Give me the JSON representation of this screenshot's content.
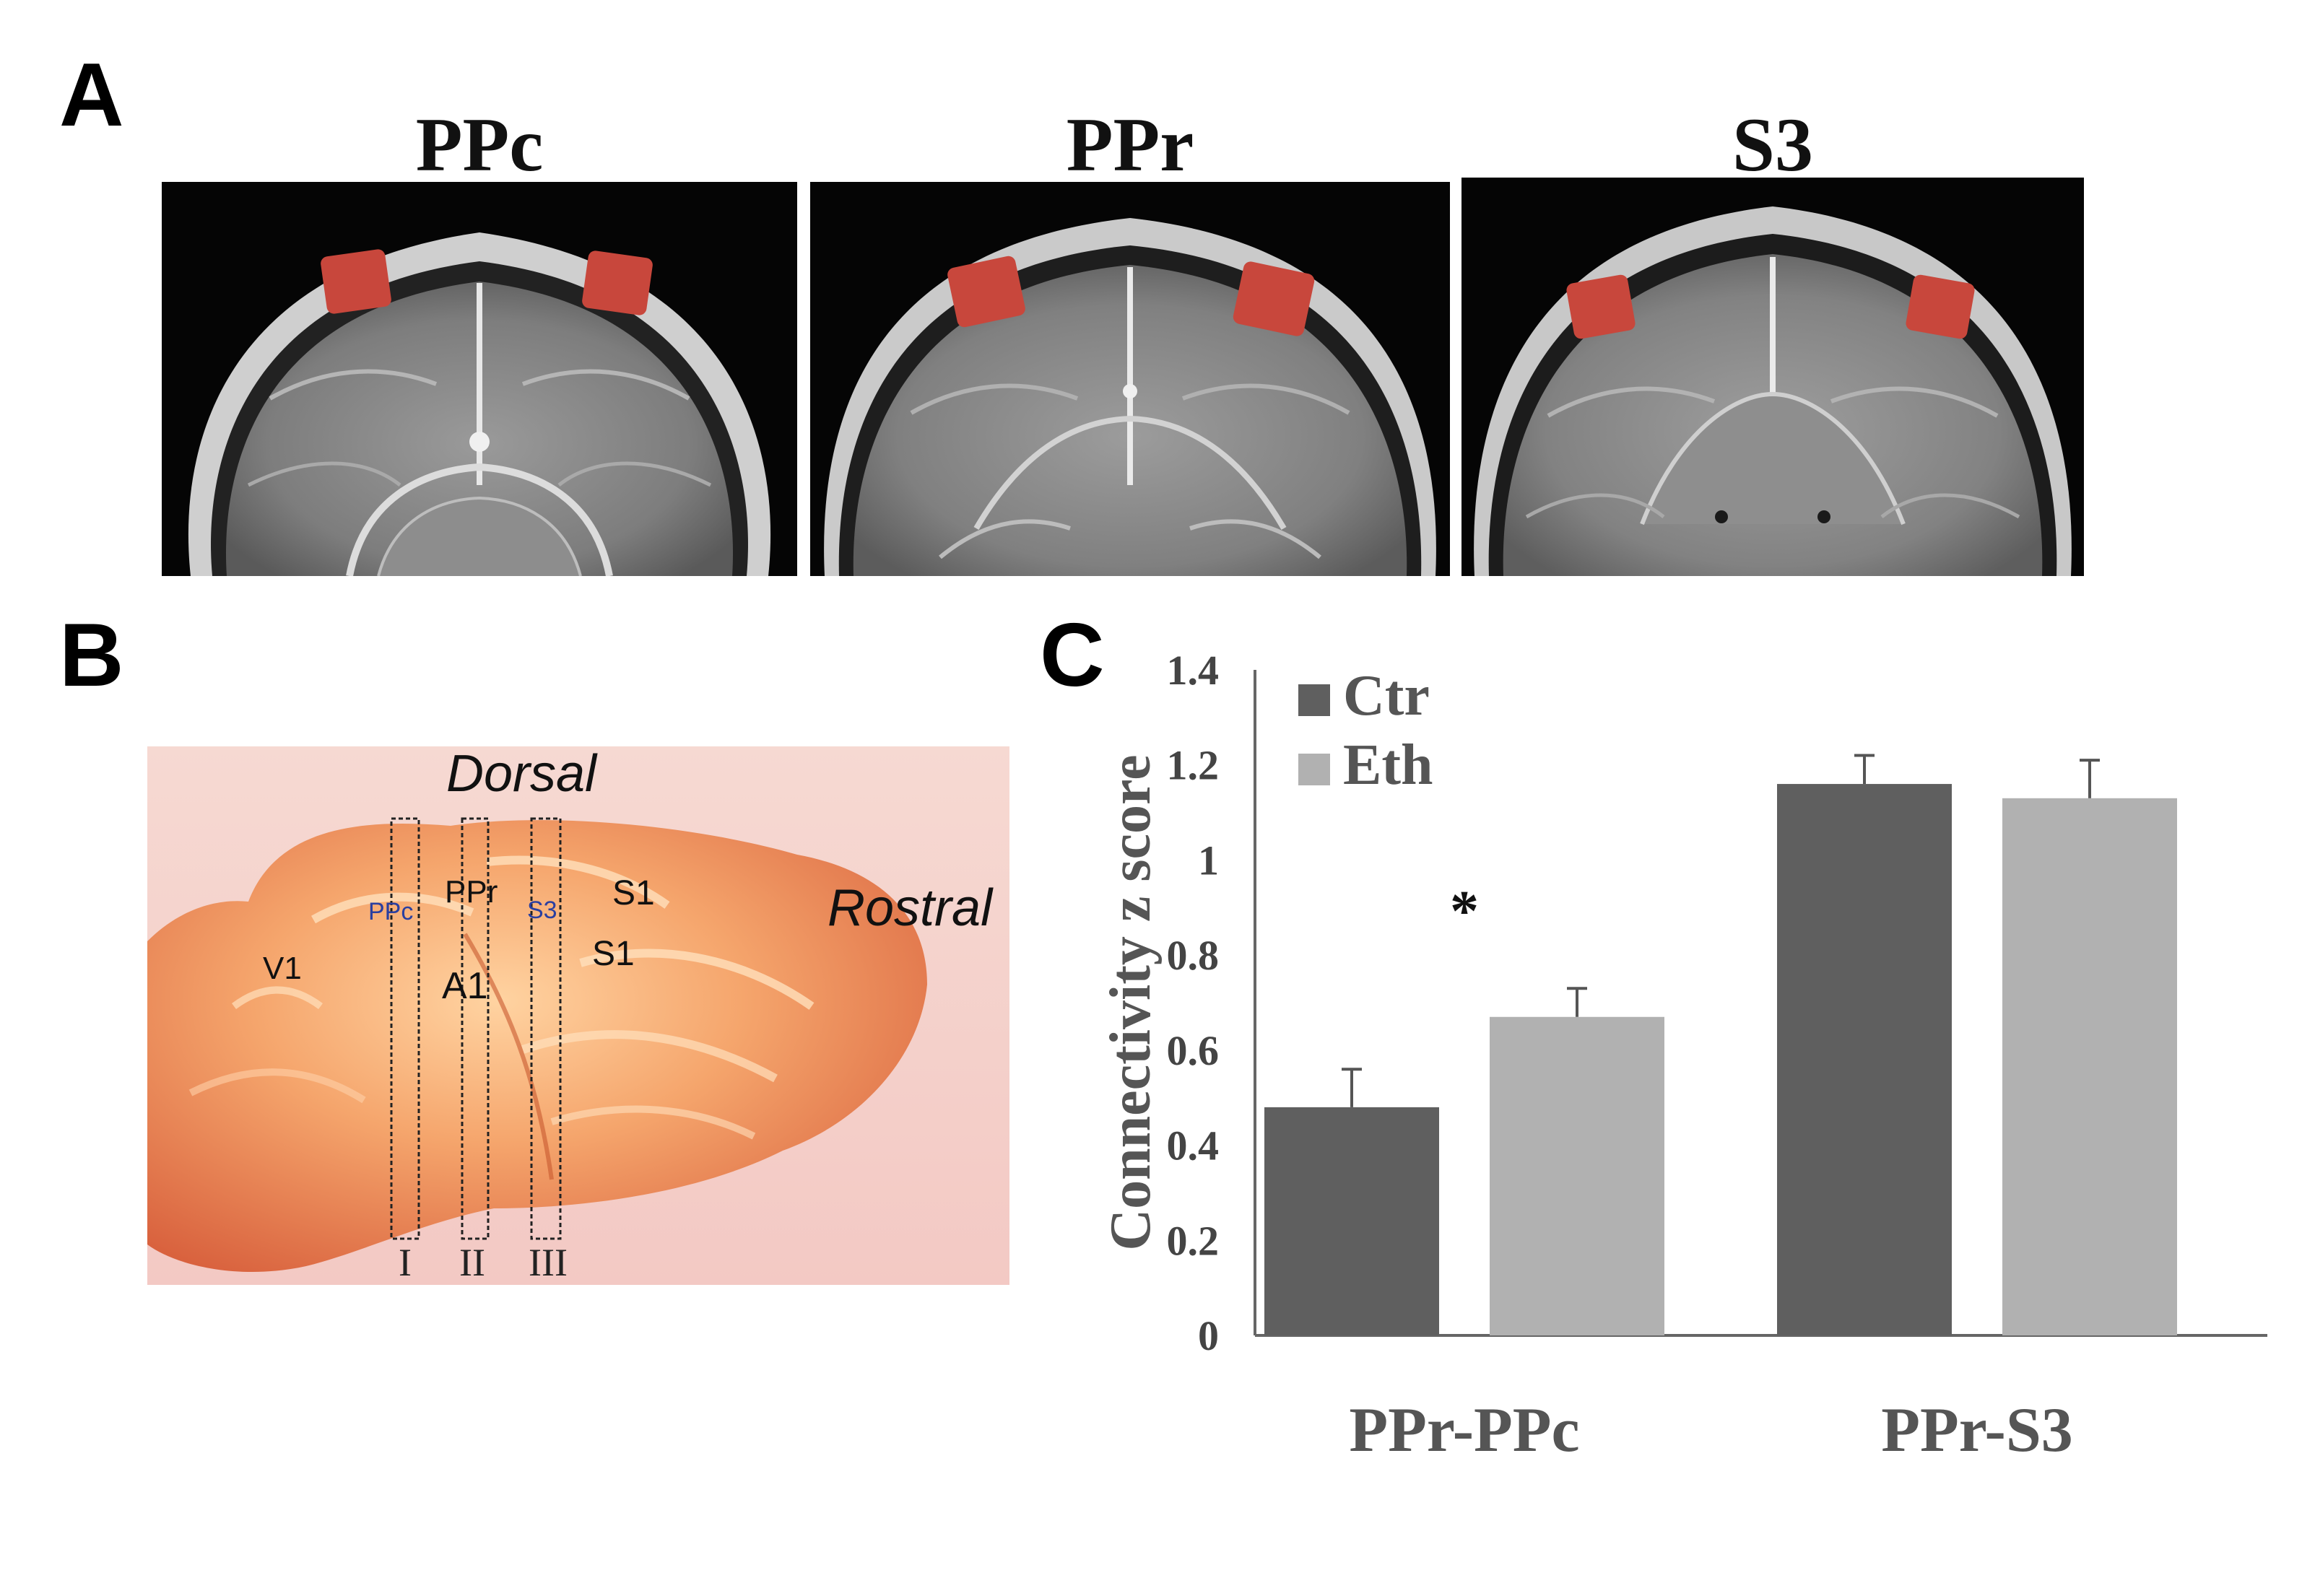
{
  "panels": {
    "a": {
      "letter": "A"
    },
    "b": {
      "letter": "B"
    },
    "c": {
      "letter": "C"
    }
  },
  "mri": {
    "titles": [
      "PPc",
      "PPr",
      "S3"
    ],
    "roi_color": "#c8473c"
  },
  "brain_photo": {
    "orientation_top": "Dorsal",
    "orientation_right": "Rostral",
    "region_labels": {
      "v1": "V1",
      "ppc": "PPc",
      "ppr": "PPr",
      "s3": "S3",
      "a1": "A1",
      "s1_upper": "S1",
      "s1_lower": "S1"
    },
    "section_labels": [
      "I",
      "II",
      "III"
    ],
    "accent_blue": "#2a3fa0"
  },
  "chart_data": {
    "type": "bar",
    "categories": [
      "PPr-PPc",
      "PPr-S3"
    ],
    "series": [
      {
        "name": "Ctr",
        "values": [
          0.48,
          1.16
        ],
        "errors": [
          0.08,
          0.06
        ],
        "color": "#5f5f5f"
      },
      {
        "name": "Eth",
        "values": [
          0.67,
          1.13
        ],
        "errors": [
          0.06,
          0.08
        ],
        "color": "#b1b1b1"
      }
    ],
    "ylabel": "Connectivity z score",
    "ylim": [
      0,
      1.4
    ],
    "yticks": [
      0,
      0.2,
      0.4,
      0.6,
      0.8,
      1,
      1.2,
      1.4
    ],
    "ytick_labels": [
      "0",
      "0.2",
      "0.4",
      "0.6",
      "0.8",
      "1",
      "1.2",
      "1.4"
    ],
    "annotations": [
      {
        "text": "*",
        "category": "PPr-PPc"
      }
    ],
    "legend_position": "top-left",
    "grid": false
  }
}
